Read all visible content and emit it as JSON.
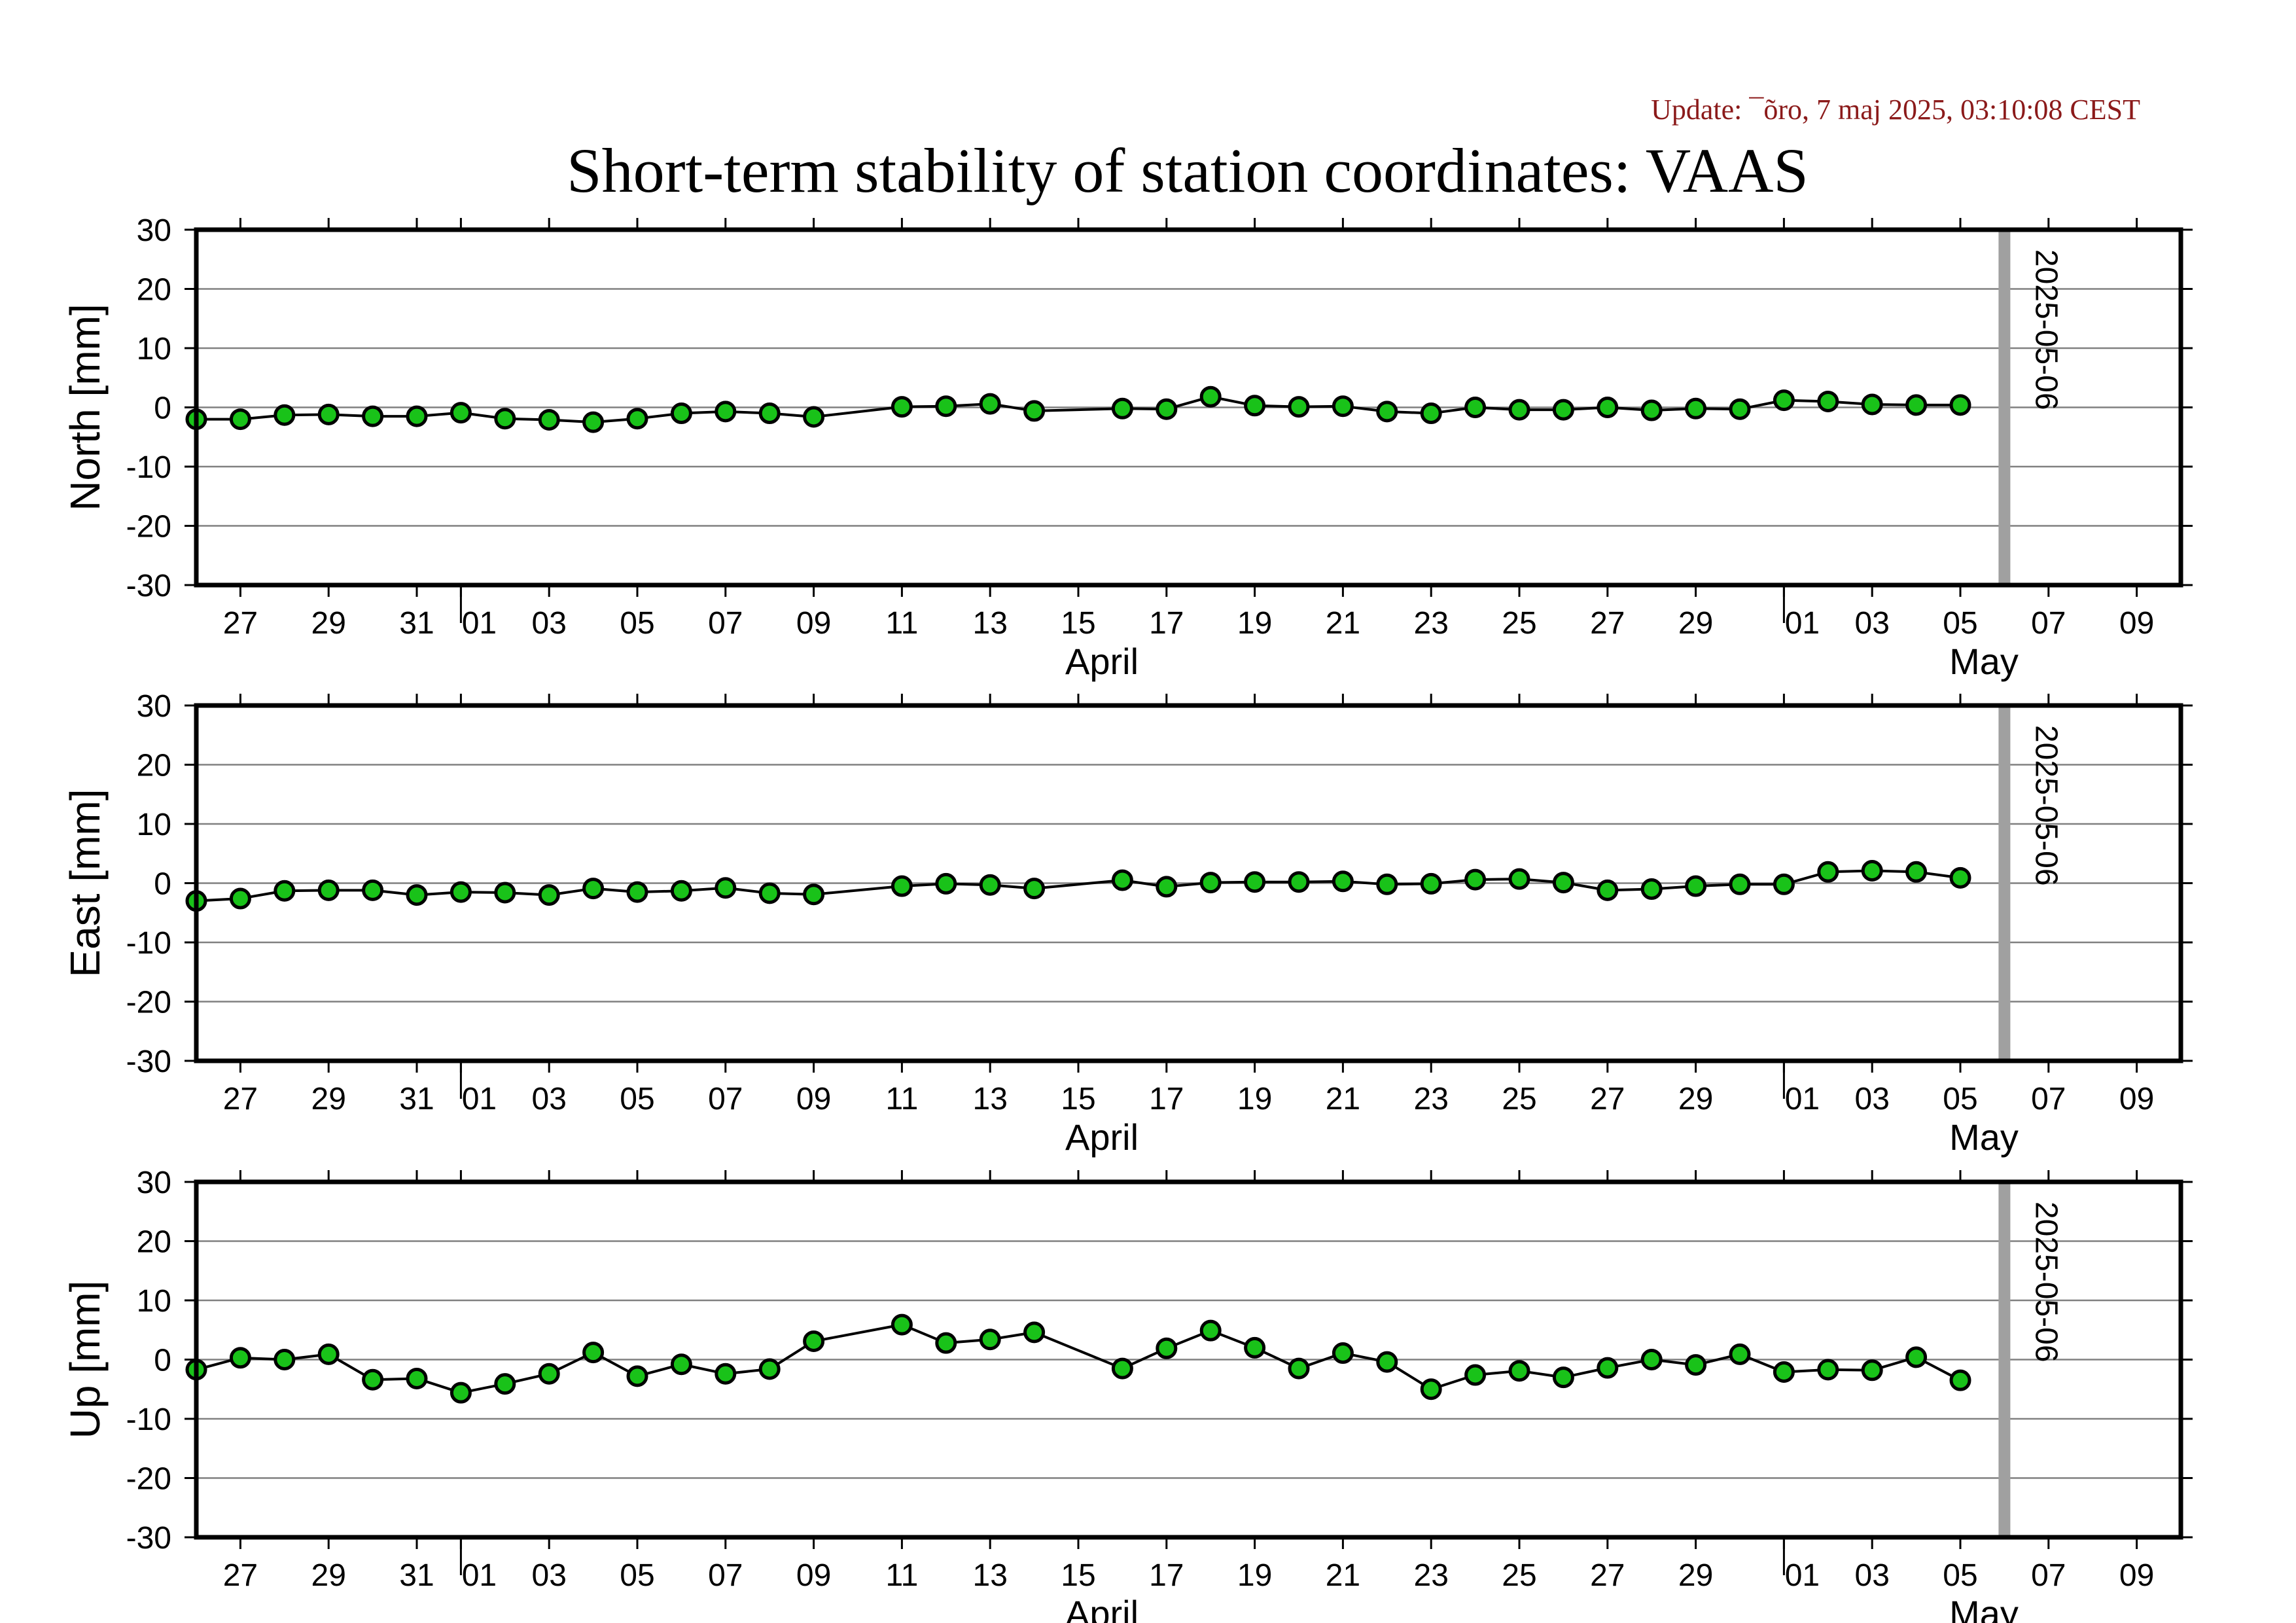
{
  "header": {
    "update_text": "Update: ¯õro, 7 maj 2025, 03:10:08 CEST",
    "title": "Short-term stability of station coordinates: VAAS"
  },
  "colors": {
    "update_text": "#8b1a1a",
    "marker_fill": "#19c219",
    "marker_edge": "#000000",
    "line": "#000000",
    "grid": "#808080",
    "ref_line": "#a0a0a0"
  },
  "chart_data": [
    {
      "type": "line",
      "title": "",
      "ylabel": "North [mm]",
      "ylim": [
        -30,
        30
      ],
      "yticks": [
        30,
        20,
        10,
        0,
        -10,
        -20,
        -30
      ],
      "xlim": [
        "2025-03-26",
        "2025-05-10"
      ],
      "x_tick_labels": [
        "27",
        "29",
        "31",
        "01",
        "03",
        "05",
        "07",
        "09",
        "11",
        "13",
        "15",
        "17",
        "19",
        "21",
        "23",
        "25",
        "27",
        "29",
        "01",
        "03",
        "05",
        "07",
        "09"
      ],
      "month_labels": [
        "April",
        "May"
      ],
      "reference_line": {
        "date": "2025-05-06",
        "label": "2025-05-06"
      },
      "grid": true,
      "series": [
        {
          "x": [
            "2025-03-26",
            "2025-03-27",
            "2025-03-28",
            "2025-03-29",
            "2025-03-30",
            "2025-03-31",
            "2025-04-01",
            "2025-04-02",
            "2025-04-03",
            "2025-04-04",
            "2025-04-05",
            "2025-04-06",
            "2025-04-07",
            "2025-04-08",
            "2025-04-09",
            "2025-04-11",
            "2025-04-12",
            "2025-04-13",
            "2025-04-14",
            "2025-04-16",
            "2025-04-17",
            "2025-04-18",
            "2025-04-19",
            "2025-04-20",
            "2025-04-21",
            "2025-04-22",
            "2025-04-23",
            "2025-04-24",
            "2025-04-25",
            "2025-04-26",
            "2025-04-27",
            "2025-04-28",
            "2025-04-29",
            "2025-04-30",
            "2025-05-01",
            "2025-05-02",
            "2025-05-03",
            "2025-05-04",
            "2025-05-05"
          ],
          "values": [
            -2,
            -2,
            -1.3,
            -1.2,
            -1.5,
            -1.5,
            -0.9,
            -1.9,
            -2.1,
            -2.5,
            -1.9,
            -1,
            -0.7,
            -1,
            -1.6,
            0.1,
            0.2,
            0.6,
            -0.6,
            -0.2,
            -0.3,
            1.8,
            0.3,
            0.1,
            0.2,
            -0.7,
            -1,
            0,
            -0.4,
            -0.4,
            0,
            -0.5,
            -0.2,
            -0.3,
            1.2,
            1,
            0.5,
            0.4,
            0.4
          ]
        }
      ]
    },
    {
      "type": "line",
      "title": "",
      "ylabel": "East [mm]",
      "ylim": [
        -30,
        30
      ],
      "yticks": [
        30,
        20,
        10,
        0,
        -10,
        -20,
        -30
      ],
      "xlim": [
        "2025-03-26",
        "2025-05-10"
      ],
      "x_tick_labels": [
        "27",
        "29",
        "31",
        "01",
        "03",
        "05",
        "07",
        "09",
        "11",
        "13",
        "15",
        "17",
        "19",
        "21",
        "23",
        "25",
        "27",
        "29",
        "01",
        "03",
        "05",
        "07",
        "09"
      ],
      "month_labels": [
        "April",
        "May"
      ],
      "reference_line": {
        "date": "2025-05-06",
        "label": "2025-05-06"
      },
      "grid": true,
      "series": [
        {
          "x": [
            "2025-03-26",
            "2025-03-27",
            "2025-03-28",
            "2025-03-29",
            "2025-03-30",
            "2025-03-31",
            "2025-04-01",
            "2025-04-02",
            "2025-04-03",
            "2025-04-04",
            "2025-04-05",
            "2025-04-06",
            "2025-04-07",
            "2025-04-08",
            "2025-04-09",
            "2025-04-11",
            "2025-04-12",
            "2025-04-13",
            "2025-04-14",
            "2025-04-16",
            "2025-04-17",
            "2025-04-18",
            "2025-04-19",
            "2025-04-20",
            "2025-04-21",
            "2025-04-22",
            "2025-04-23",
            "2025-04-24",
            "2025-04-25",
            "2025-04-26",
            "2025-04-27",
            "2025-04-28",
            "2025-04-29",
            "2025-04-30",
            "2025-05-01",
            "2025-05-02",
            "2025-05-03",
            "2025-05-04",
            "2025-05-05"
          ],
          "values": [
            -3,
            -2.6,
            -1.3,
            -1.2,
            -1.2,
            -2,
            -1.5,
            -1.6,
            -2,
            -0.9,
            -1.5,
            -1.3,
            -0.8,
            -1.7,
            -1.9,
            -0.5,
            -0.1,
            -0.3,
            -0.9,
            0.5,
            -0.6,
            0.1,
            0.2,
            0.2,
            0.3,
            -0.2,
            -0.1,
            0.6,
            0.7,
            0.1,
            -1.2,
            -1,
            -0.5,
            -0.2,
            -0.2,
            1.9,
            2.1,
            1.9,
            0.9
          ]
        }
      ]
    },
    {
      "type": "line",
      "title": "",
      "ylabel": "Up [mm]",
      "ylim": [
        -30,
        30
      ],
      "yticks": [
        30,
        20,
        10,
        0,
        -10,
        -20,
        -30
      ],
      "xlim": [
        "2025-03-26",
        "2025-05-10"
      ],
      "x_tick_labels": [
        "27",
        "29",
        "31",
        "01",
        "03",
        "05",
        "07",
        "09",
        "11",
        "13",
        "15",
        "17",
        "19",
        "21",
        "23",
        "25",
        "27",
        "29",
        "01",
        "03",
        "05",
        "07",
        "09"
      ],
      "month_labels": [
        "April",
        "May"
      ],
      "reference_line": {
        "date": "2025-05-06",
        "label": "2025-05-06"
      },
      "grid": true,
      "series": [
        {
          "x": [
            "2025-03-26",
            "2025-03-27",
            "2025-03-28",
            "2025-03-29",
            "2025-03-30",
            "2025-03-31",
            "2025-04-01",
            "2025-04-02",
            "2025-04-03",
            "2025-04-04",
            "2025-04-05",
            "2025-04-06",
            "2025-04-07",
            "2025-04-08",
            "2025-04-09",
            "2025-04-11",
            "2025-04-12",
            "2025-04-13",
            "2025-04-14",
            "2025-04-16",
            "2025-04-17",
            "2025-04-18",
            "2025-04-19",
            "2025-04-20",
            "2025-04-21",
            "2025-04-22",
            "2025-04-23",
            "2025-04-24",
            "2025-04-25",
            "2025-04-26",
            "2025-04-27",
            "2025-04-28",
            "2025-04-29",
            "2025-04-30",
            "2025-05-01",
            "2025-05-02",
            "2025-05-03",
            "2025-05-04",
            "2025-05-05"
          ],
          "values": [
            -1.7,
            0.3,
            0,
            0.9,
            -3.4,
            -3.2,
            -5.6,
            -4.1,
            -2.4,
            1.2,
            -2.8,
            -0.8,
            -2.4,
            -1.6,
            3.1,
            5.9,
            2.8,
            3.4,
            4.6,
            -1.5,
            1.9,
            4.9,
            2,
            -1.5,
            1.1,
            -0.4,
            -5,
            -2.6,
            -1.9,
            -3,
            -1.4,
            0,
            -0.9,
            0.9,
            -2.1,
            -1.7,
            -1.8,
            0.4,
            -3.5
          ]
        }
      ]
    }
  ]
}
